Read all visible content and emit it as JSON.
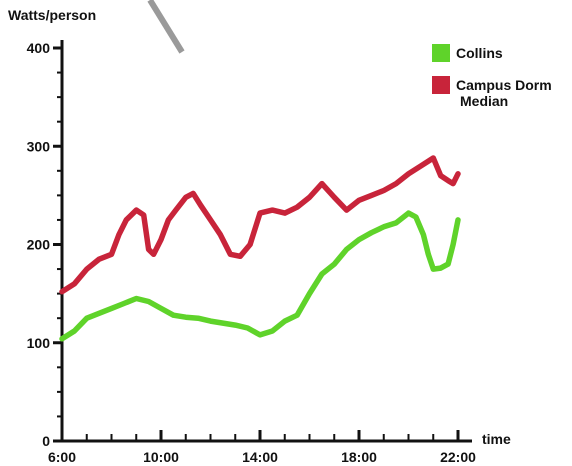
{
  "chart_data": {
    "type": "line",
    "ylabel": "Watts/person",
    "xlabel": "time",
    "ylim": [
      0,
      400
    ],
    "xlim": [
      6,
      22
    ],
    "y_ticks": [
      0,
      100,
      200,
      300,
      400
    ],
    "x_ticks": [
      6,
      10,
      14,
      18,
      22
    ],
    "x_tick_labels": [
      "6:00",
      "10:00",
      "14:00",
      "18:00",
      "22:00"
    ],
    "grid": false,
    "legend_position": "top-right",
    "series": [
      {
        "name": "Collins",
        "color": "#5fd32a",
        "x": [
          6,
          6.5,
          7,
          7.5,
          8,
          8.5,
          9,
          9.5,
          10,
          10.5,
          11,
          11.5,
          12,
          12.5,
          13,
          13.5,
          14,
          14.5,
          15,
          15.5,
          16,
          16.5,
          17,
          17.5,
          18,
          18.5,
          19,
          19.5,
          20,
          20.3,
          20.6,
          20.8,
          21,
          21.3,
          21.6,
          21.8,
          22
        ],
        "values": [
          104,
          112,
          125,
          130,
          135,
          140,
          145,
          142,
          135,
          128,
          126,
          125,
          122,
          120,
          118,
          115,
          108,
          112,
          122,
          128,
          150,
          170,
          180,
          195,
          205,
          212,
          218,
          222,
          232,
          228,
          210,
          190,
          175,
          176,
          180,
          200,
          225
        ]
      },
      {
        "name": "Campus Dorm Median",
        "color": "#c8243a",
        "x": [
          6,
          6.5,
          7,
          7.5,
          8,
          8.3,
          8.6,
          9,
          9.3,
          9.5,
          9.7,
          10,
          10.3,
          10.6,
          11,
          11.3,
          11.6,
          12,
          12.4,
          12.8,
          13.2,
          13.6,
          14,
          14.5,
          15,
          15.5,
          16,
          16.5,
          17,
          17.5,
          18,
          18.5,
          19,
          19.5,
          20,
          20.5,
          21,
          21.3,
          21.6,
          21.8,
          22
        ],
        "values": [
          152,
          160,
          175,
          185,
          190,
          210,
          225,
          235,
          230,
          195,
          190,
          205,
          225,
          235,
          248,
          252,
          240,
          225,
          210,
          190,
          188,
          200,
          232,
          235,
          232,
          238,
          248,
          262,
          248,
          235,
          245,
          250,
          255,
          262,
          272,
          280,
          288,
          270,
          265,
          262,
          272
        ]
      }
    ],
    "legend": [
      {
        "label_lines": [
          "Collins"
        ],
        "color": "#5fd32a"
      },
      {
        "label_lines": [
          "Campus Dorm",
          "Median"
        ],
        "color": "#c8243a"
      }
    ]
  }
}
